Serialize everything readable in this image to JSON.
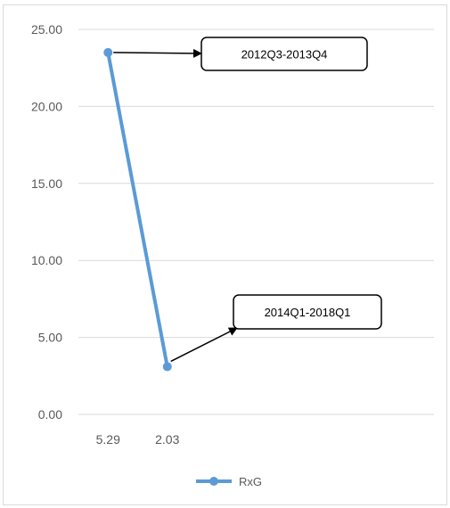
{
  "chart_data": {
    "type": "line",
    "x": [
      "5.29",
      "2.03"
    ],
    "series": [
      {
        "name": "RxG",
        "values": [
          23.5,
          3.1
        ],
        "color": "#5b9bd5"
      }
    ],
    "yticks": [
      "0.00",
      "5.00",
      "10.00",
      "15.00",
      "20.00",
      "25.00"
    ],
    "ylim": [
      0,
      25
    ],
    "grid": true,
    "legend": "bottom",
    "annotations": [
      {
        "text": "2012Q3-2013Q4",
        "point": 0
      },
      {
        "text": "2014Q1-2018Q1",
        "point": 1
      }
    ]
  }
}
